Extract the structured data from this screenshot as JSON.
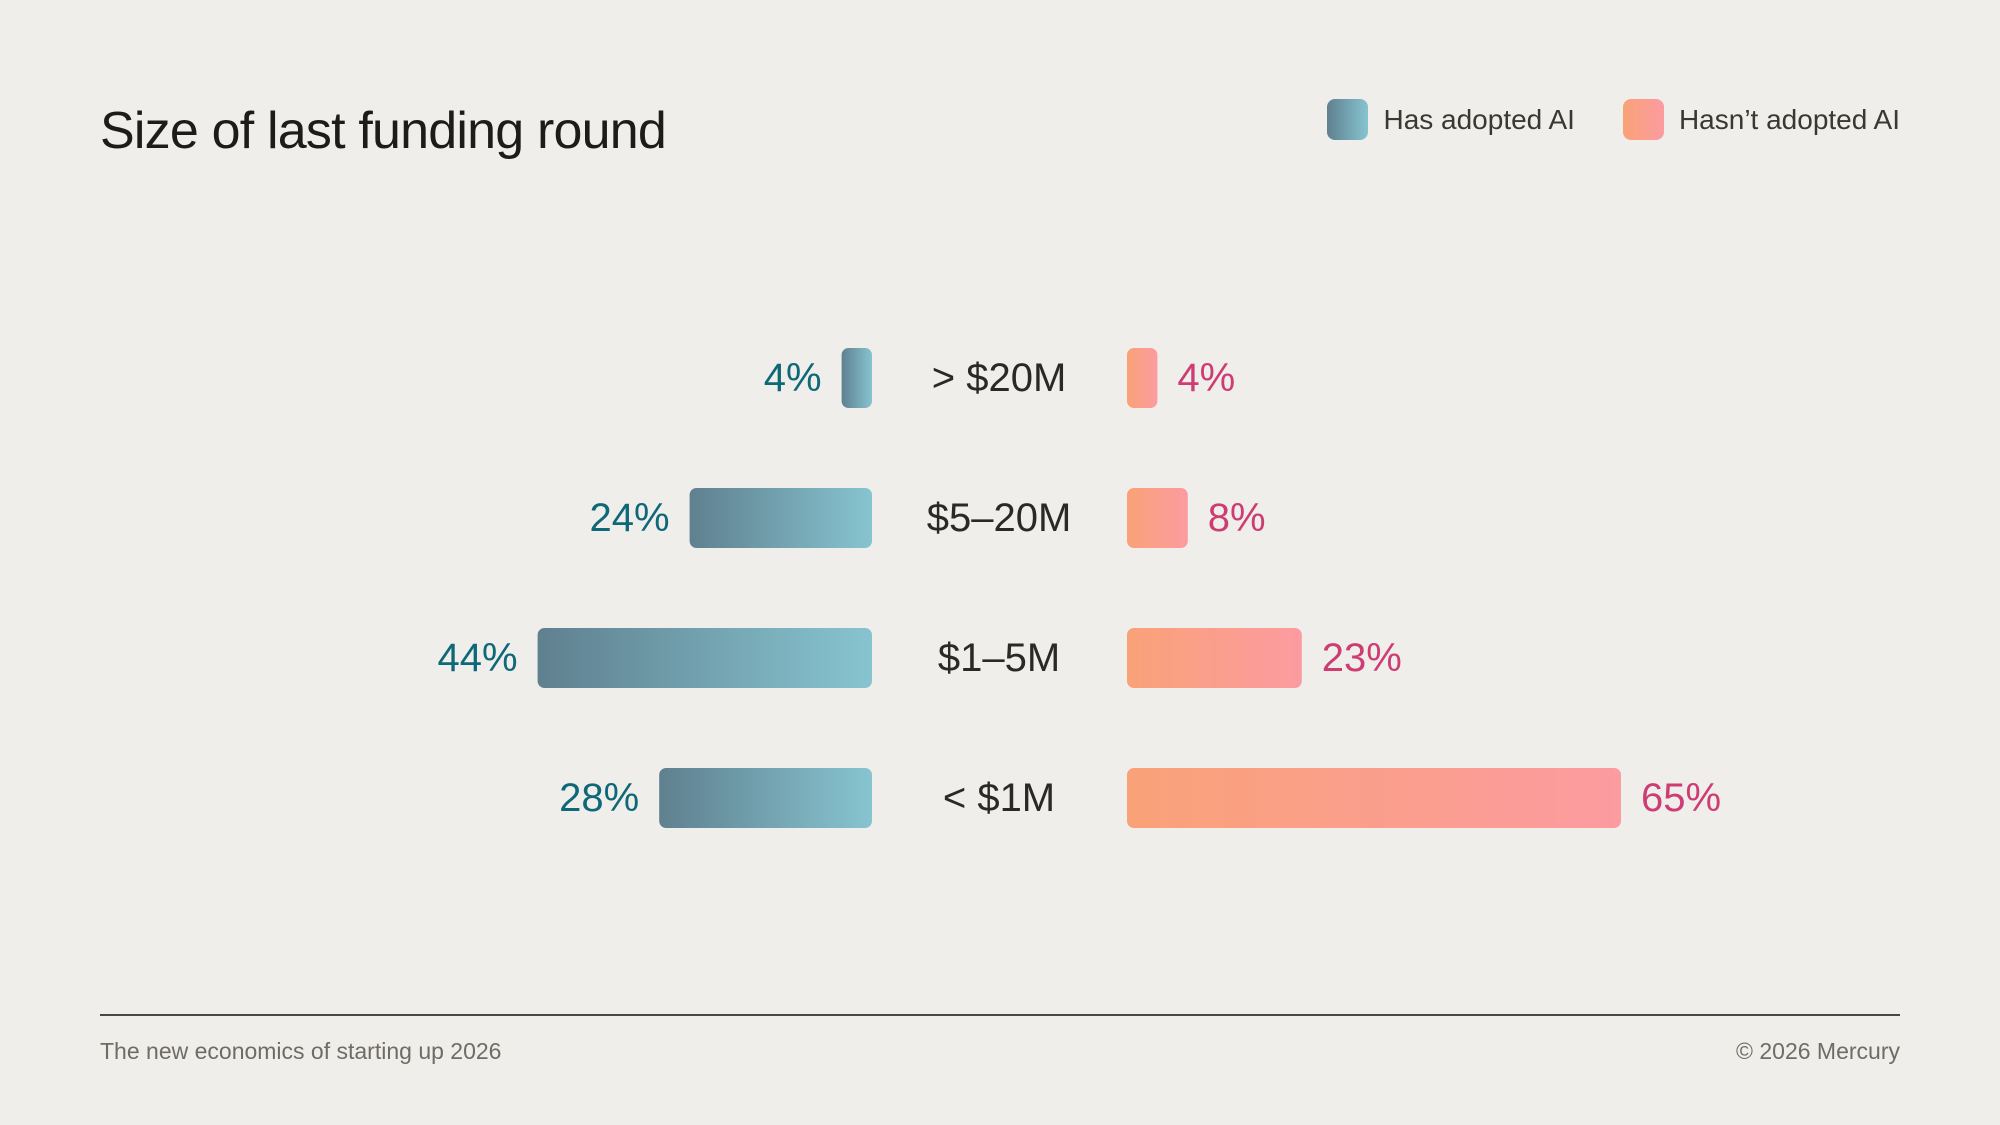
{
  "header": {
    "title": "Size of last funding round"
  },
  "legend": {
    "adopted_label": "Has adopted AI",
    "not_adopted_label": "Hasn’t adopted AI"
  },
  "colors": {
    "adopted_start": "#5f808f",
    "adopted_end": "#87c4d0",
    "adopted_text": "#0f6878",
    "not_adopted_start": "#f9a278",
    "not_adopted_end": "#fc9ba0",
    "not_adopted_text": "#cd3c73"
  },
  "chart_data": {
    "type": "bar",
    "layout": "diverging-horizontal",
    "title": "Size of last funding round",
    "categories": [
      "> $20M",
      "$5–20M",
      "$1–5M",
      "< $1M"
    ],
    "series": [
      {
        "name": "Has adopted AI",
        "values": [
          4,
          24,
          44,
          28
        ],
        "labels": [
          "4%",
          "24%",
          "44%",
          "28%"
        ]
      },
      {
        "name": "Hasn’t adopted AI",
        "values": [
          4,
          8,
          23,
          65
        ],
        "labels": [
          "4%",
          "8%",
          "23%",
          "65%"
        ]
      }
    ],
    "unit": "%",
    "legend": "top-right",
    "grid": false
  },
  "footer": {
    "left": "The new economics of starting up 2026",
    "right": "© 2026 Mercury"
  }
}
